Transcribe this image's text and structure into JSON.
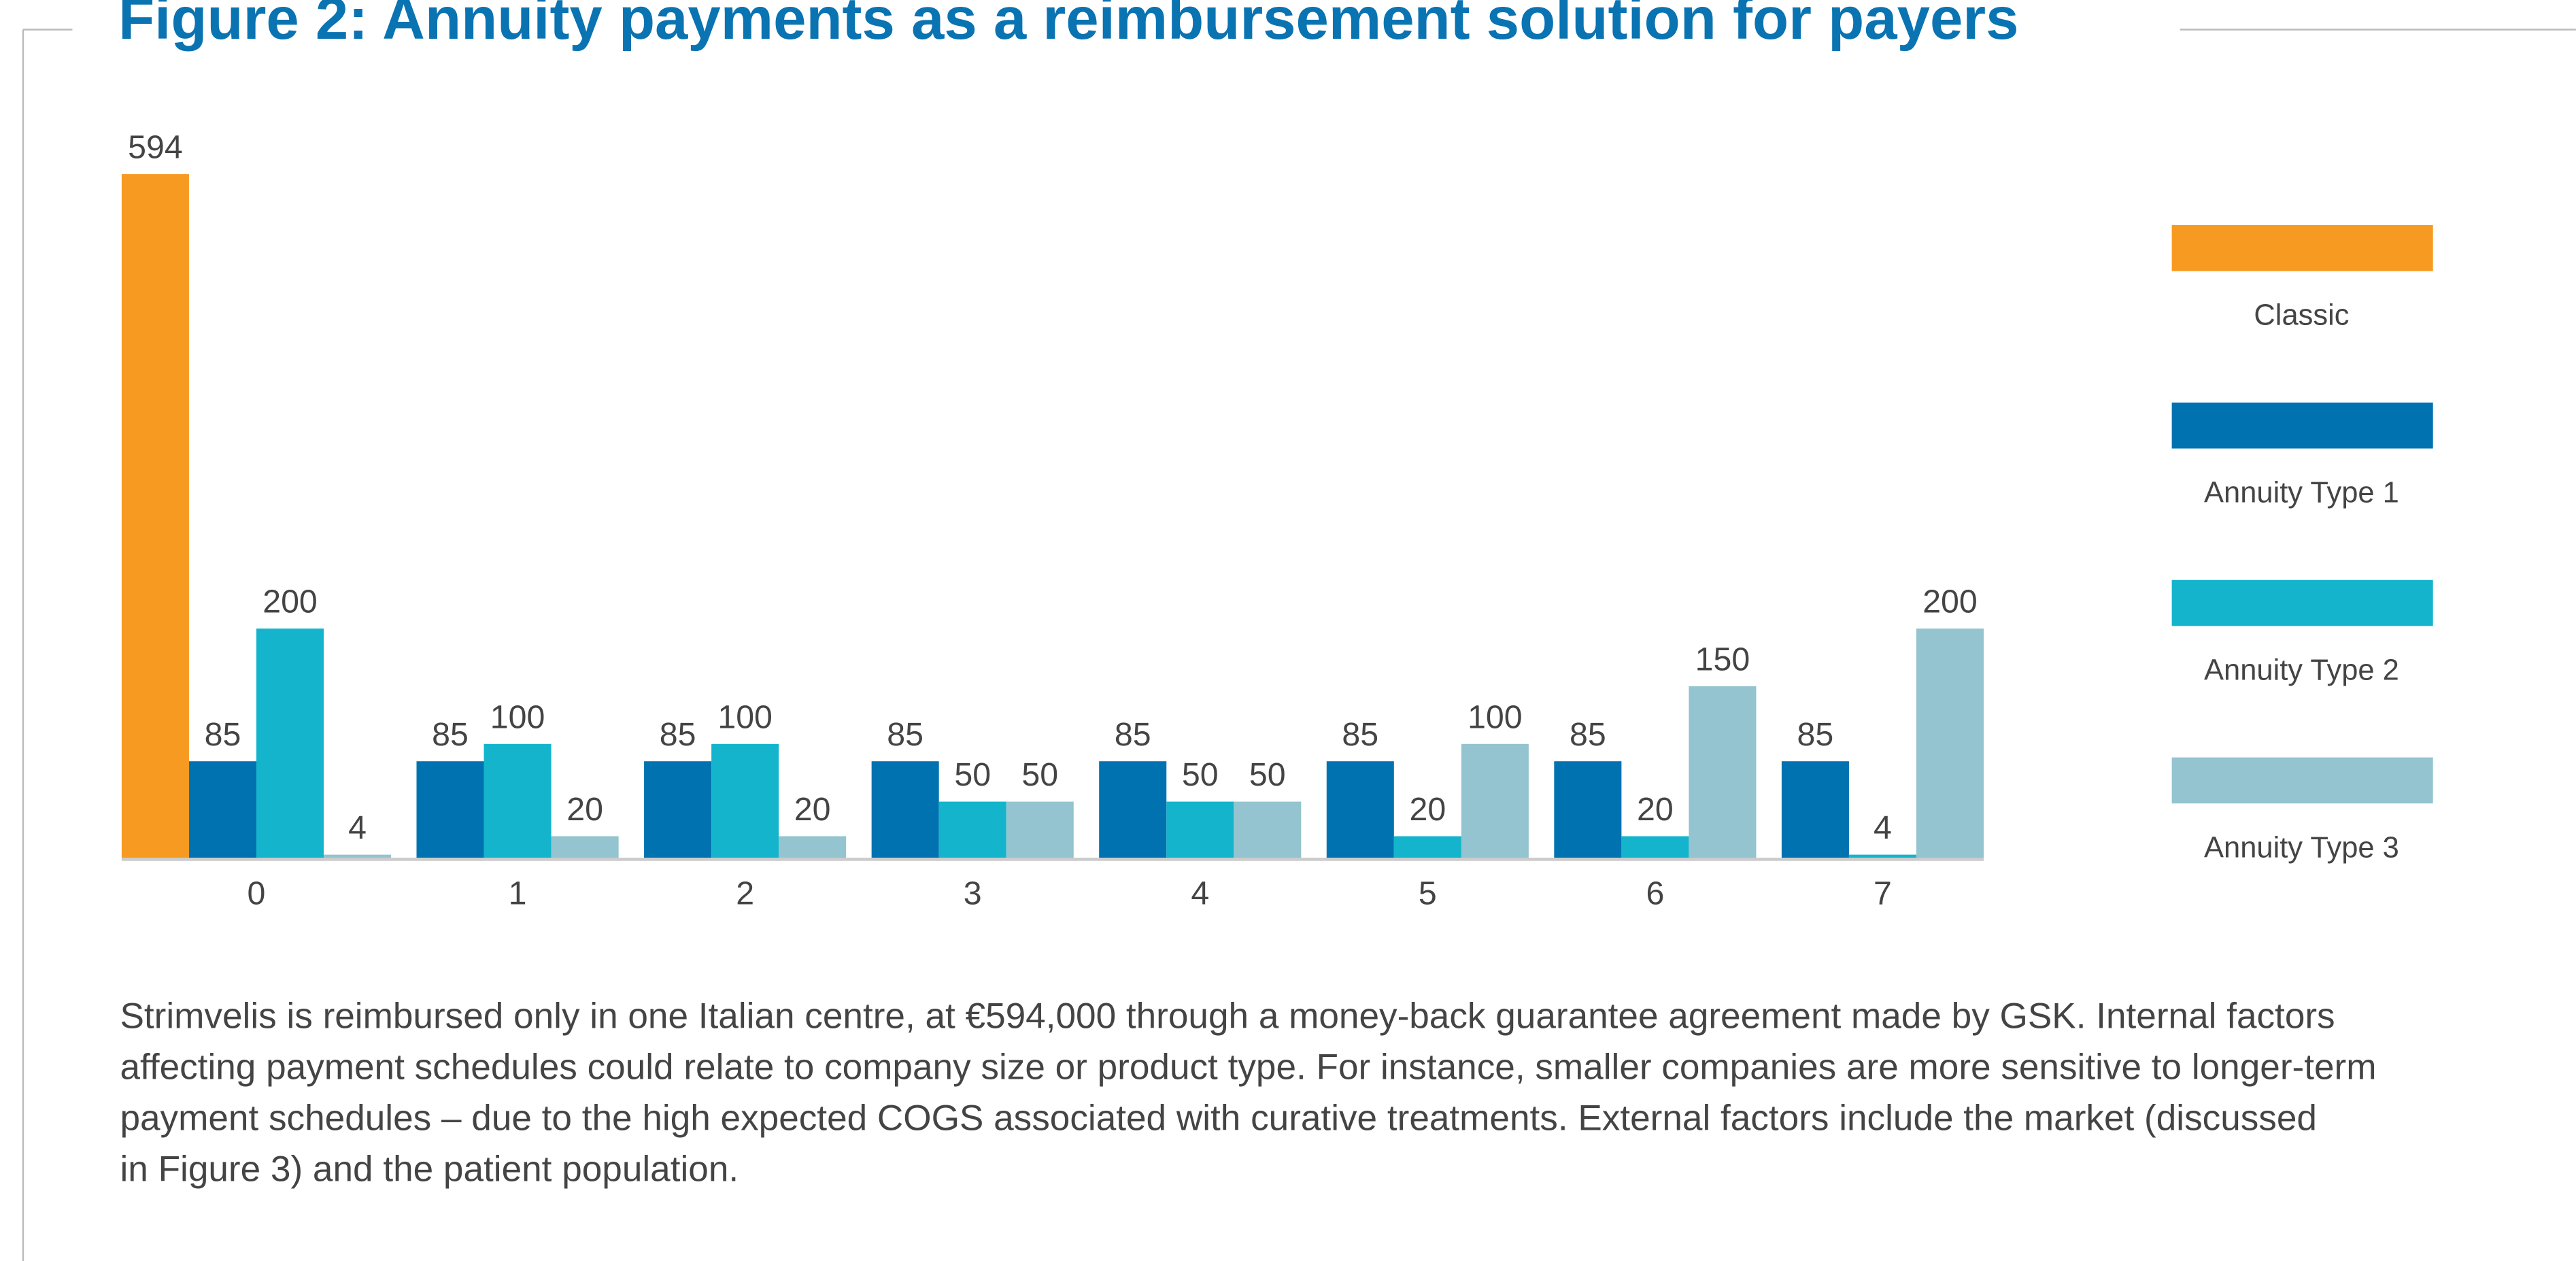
{
  "chart_data": {
    "type": "bar",
    "title": "Figure 2: Annuity payments as a reimbursement solution for payers",
    "categories": [
      "0",
      "1",
      "2",
      "3",
      "4",
      "5",
      "6",
      "7"
    ],
    "series": [
      {
        "name": "Classic",
        "color": "#f79a21",
        "values": [
          594,
          null,
          null,
          null,
          null,
          null,
          null,
          null
        ]
      },
      {
        "name": "Annuity Type 1",
        "color": "#0072b0",
        "values": [
          85,
          85,
          85,
          85,
          85,
          85,
          85,
          85
        ]
      },
      {
        "name": "Annuity Type 2",
        "color": "#14b4cc",
        "values": [
          200,
          100,
          100,
          50,
          50,
          20,
          20,
          4
        ]
      },
      {
        "name": "Annuity Type 3",
        "color": "#93c4cf",
        "values": [
          4,
          20,
          20,
          50,
          50,
          100,
          150,
          200
        ]
      }
    ],
    "ylim": [
      0,
      594
    ],
    "legend": "right"
  },
  "caption": [
    "Strimvelis is reimbursed only in one Italian centre, at €594,000 through a money-back guarantee agreement made by GSK. Internal factors",
    "affecting payment schedules could relate to company size or product type. For instance, smaller companies are more sensitive to longer-term",
    "payment schedules – due to the high expected COGS associated with curative treatments. External factors include the market (discussed",
    "in Figure 3) and the patient population."
  ]
}
